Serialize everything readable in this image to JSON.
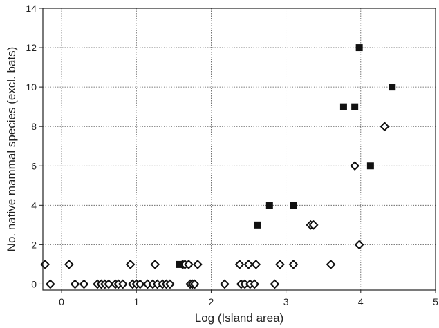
{
  "chart_data": {
    "type": "scatter",
    "title": "",
    "xlabel": "Log (Island area)",
    "ylabel": "No. native mammal species (excl. bats)",
    "xlim": [
      -0.25,
      5.0
    ],
    "ylim": [
      -0.3,
      14.0
    ],
    "xticks": [
      0,
      1,
      2,
      3,
      4,
      5
    ],
    "yticks": [
      0,
      2,
      4,
      6,
      8,
      10,
      12,
      14
    ],
    "grid": true,
    "legend": "none",
    "series": [
      {
        "marker": "open-diamond",
        "color": "#111111",
        "points": [
          [
            -0.22,
            1
          ],
          [
            -0.15,
            0
          ],
          [
            0.1,
            1
          ],
          [
            0.18,
            0
          ],
          [
            0.3,
            0
          ],
          [
            0.48,
            0
          ],
          [
            0.53,
            0
          ],
          [
            0.58,
            0
          ],
          [
            0.63,
            0
          ],
          [
            0.72,
            0
          ],
          [
            0.76,
            0
          ],
          [
            0.82,
            0
          ],
          [
            0.92,
            1
          ],
          [
            0.95,
            0
          ],
          [
            1.0,
            0
          ],
          [
            1.05,
            0
          ],
          [
            1.15,
            0
          ],
          [
            1.22,
            0
          ],
          [
            1.25,
            1
          ],
          [
            1.28,
            0
          ],
          [
            1.35,
            0
          ],
          [
            1.4,
            0
          ],
          [
            1.45,
            0
          ],
          [
            1.62,
            1
          ],
          [
            1.65,
            1
          ],
          [
            1.7,
            1
          ],
          [
            1.72,
            0
          ],
          [
            1.75,
            0
          ],
          [
            1.78,
            0
          ],
          [
            1.82,
            1
          ],
          [
            2.18,
            0
          ],
          [
            2.38,
            1
          ],
          [
            2.4,
            0
          ],
          [
            2.45,
            0
          ],
          [
            2.5,
            1
          ],
          [
            2.52,
            0
          ],
          [
            2.58,
            0
          ],
          [
            2.6,
            1
          ],
          [
            2.85,
            0
          ],
          [
            2.92,
            1
          ],
          [
            3.1,
            1
          ],
          [
            3.33,
            3
          ],
          [
            3.37,
            3
          ],
          [
            3.6,
            1
          ],
          [
            3.92,
            6
          ],
          [
            3.98,
            2
          ],
          [
            4.32,
            8
          ]
        ]
      },
      {
        "marker": "filled-square",
        "color": "#111111",
        "points": [
          [
            1.58,
            1
          ],
          [
            2.62,
            3
          ],
          [
            2.78,
            4
          ],
          [
            3.1,
            4
          ],
          [
            3.77,
            9
          ],
          [
            3.92,
            9
          ],
          [
            3.98,
            12
          ],
          [
            4.13,
            6
          ],
          [
            4.42,
            10
          ]
        ]
      }
    ]
  }
}
